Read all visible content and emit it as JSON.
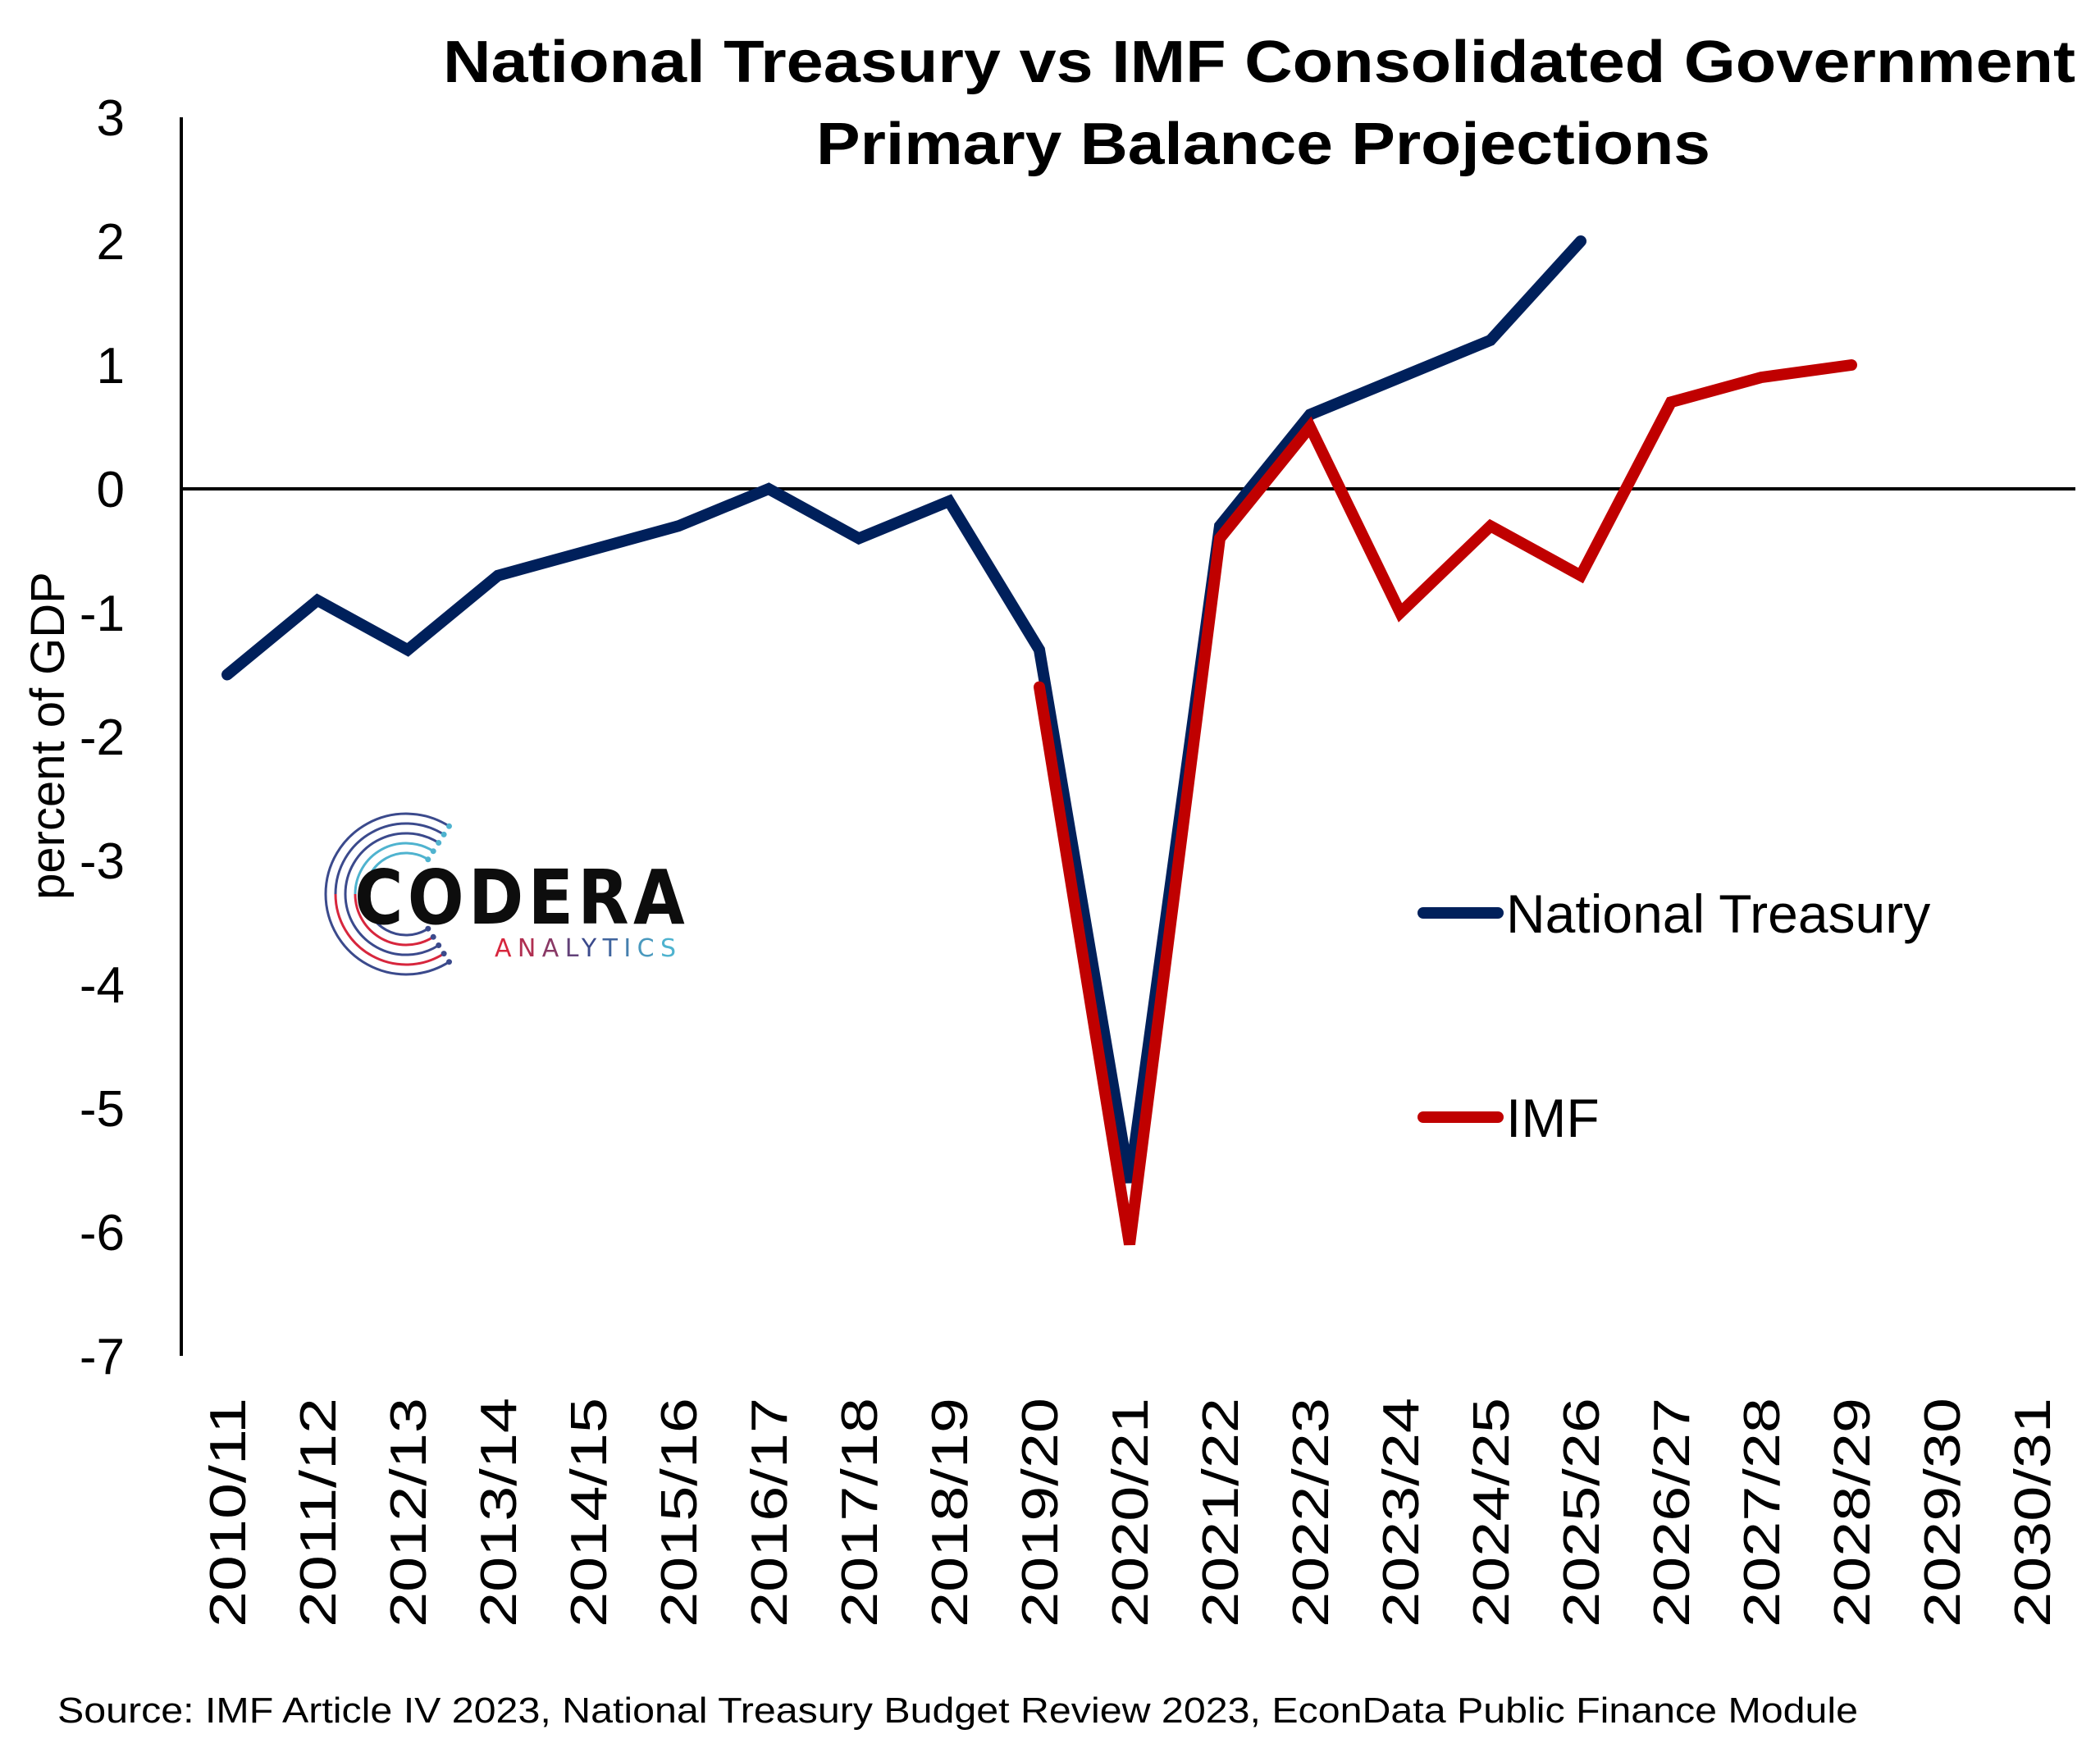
{
  "chart_data": {
    "type": "line",
    "title": [
      "National Treasury vs IMF Consolidated Government",
      "Primary Balance Projections"
    ],
    "xlabel": "",
    "ylabel": "percent of GDP",
    "ylim": [
      -7,
      3
    ],
    "yticks": [
      3,
      2,
      1,
      0,
      -1,
      -2,
      -3,
      -4,
      -5,
      -6,
      -7
    ],
    "grid": false,
    "zero_line": true,
    "categories": [
      "2010/11",
      "2011/12",
      "2012/13",
      "2013/14",
      "2014/15",
      "2015/16",
      "2016/17",
      "2017/18",
      "2018/19",
      "2019/20",
      "2020/21",
      "2021/22",
      "2022/23",
      "2023/24",
      "2024/25",
      "2025/26",
      "2026/27",
      "2027/28",
      "2028/29",
      "2029/30",
      "2030/31"
    ],
    "series": [
      {
        "name": "National Treasury",
        "color": "#00205B",
        "values": [
          -1.5,
          -0.9,
          -1.3,
          -0.7,
          -0.5,
          -0.3,
          0.0,
          -0.4,
          -0.1,
          -1.3,
          -5.6,
          -0.3,
          0.6,
          0.9,
          1.2,
          2.0,
          null,
          null,
          null,
          null,
          null
        ]
      },
      {
        "name": "IMF",
        "color": "#C00000",
        "values": [
          null,
          null,
          null,
          null,
          null,
          null,
          null,
          null,
          null,
          -1.6,
          -6.1,
          -0.4,
          0.5,
          -1.0,
          -0.3,
          -0.7,
          0.7,
          0.9,
          1.0,
          null,
          null
        ]
      }
    ],
    "legend": {
      "placement": "right-middle",
      "entries": [
        "National Treasury",
        "IMF"
      ]
    },
    "source": "Source: IMF Article IV 2023, National Treasury Budget Review 2023, EconData Public Finance Module"
  },
  "logo": {
    "name": "CODERA",
    "subtitle": "ANALYTICS",
    "colors": [
      "#D7263D",
      "#3B4A8C",
      "#4FB3CF"
    ]
  }
}
